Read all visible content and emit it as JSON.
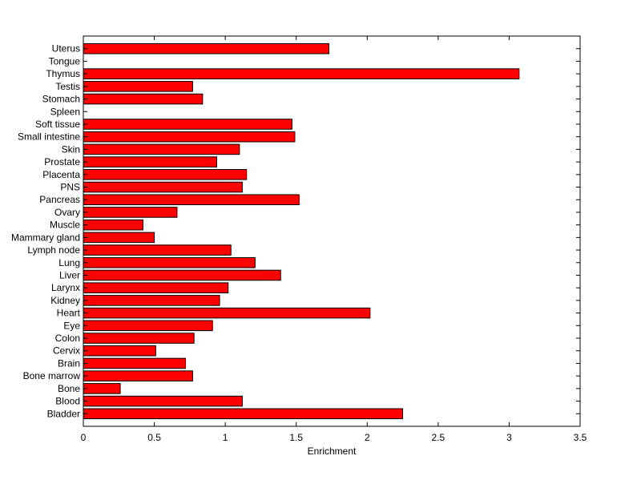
{
  "chart_data": {
    "type": "bar",
    "orientation": "horizontal",
    "title": "",
    "xlabel": "Enrichment",
    "ylabel": "",
    "xlim": [
      0,
      3.5
    ],
    "xticks": [
      "0",
      "0.5",
      "1",
      "1.5",
      "2",
      "2.5",
      "3",
      "3.5"
    ],
    "grid": false,
    "legend": "none",
    "bar_color": "#ff0000",
    "edge_color": "#000000",
    "categories": [
      "Bladder",
      "Blood",
      "Bone",
      "Bone marrow",
      "Brain",
      "Cervix",
      "Colon",
      "Eye",
      "Heart",
      "Kidney",
      "Larynx",
      "Liver",
      "Lung",
      "Lymph node",
      "Mammary gland",
      "Muscle",
      "Ovary",
      "Pancreas",
      "PNS",
      "Placenta",
      "Prostate",
      "Skin",
      "Small intestine",
      "Soft tissue",
      "Spleen",
      "Stomach",
      "Testis",
      "Thymus",
      "Tongue",
      "Uterus"
    ],
    "values": [
      2.25,
      1.12,
      0.26,
      0.77,
      0.72,
      0.51,
      0.78,
      0.91,
      2.02,
      0.96,
      1.02,
      1.39,
      1.21,
      1.04,
      0.5,
      0.42,
      0.66,
      1.52,
      1.12,
      1.15,
      0.94,
      1.1,
      1.49,
      1.47,
      0,
      0.84,
      0.77,
      3.07,
      0,
      1.73
    ]
  }
}
